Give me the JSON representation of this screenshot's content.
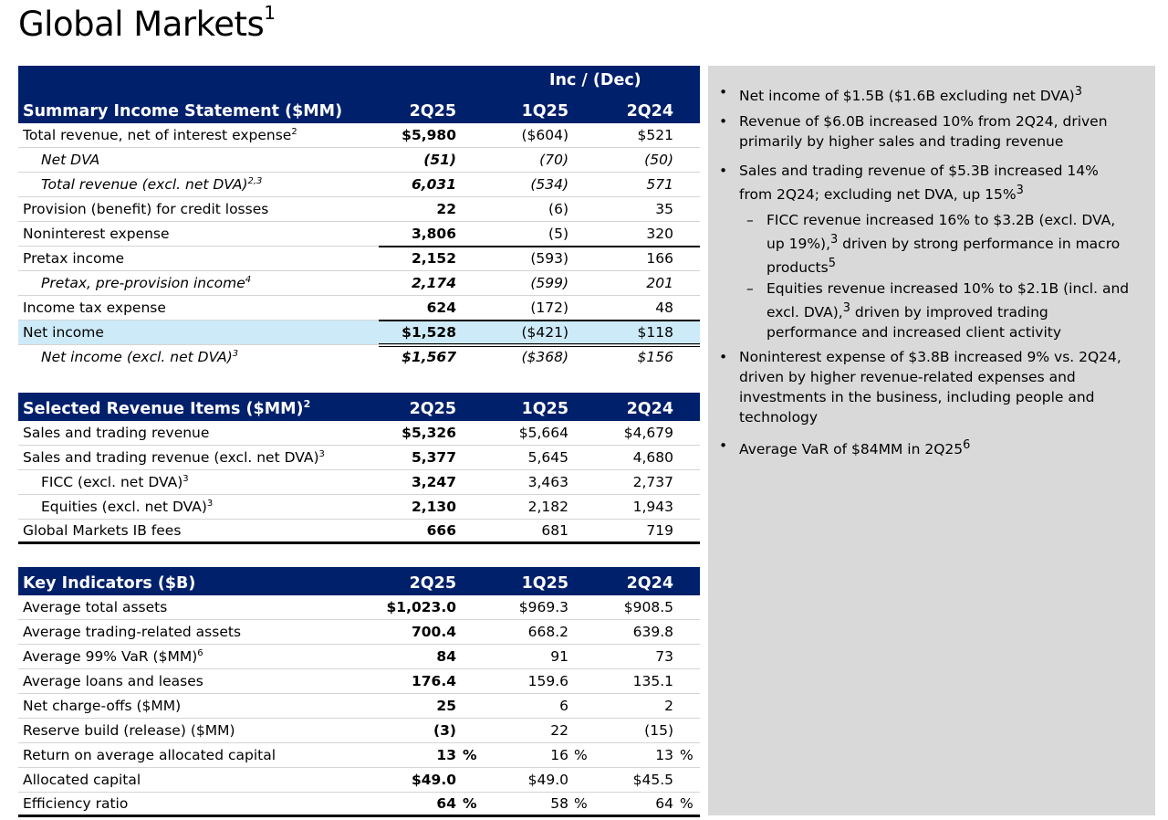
{
  "title": "Global Markets",
  "title_sup": "1",
  "summary": {
    "inc_dec": "Inc / (Dec)",
    "header": "Summary Income Statement ($MM)",
    "cols": [
      "2Q25",
      "1Q25",
      "2Q24"
    ],
    "rows": [
      {
        "label": "Total revenue, net of interest expense",
        "sup": "2",
        "v": [
          "$5,980",
          "($604)",
          "$521"
        ]
      },
      {
        "label": "Net DVA",
        "v": [
          "(51)",
          "(70)",
          "(50)"
        ]
      },
      {
        "label": "Total revenue (excl. net DVA)",
        "sup": "2,3",
        "v": [
          "6,031",
          "(534)",
          "571"
        ]
      },
      {
        "label": "Provision (benefit) for credit losses",
        "v": [
          "22",
          "(6)",
          "35"
        ]
      },
      {
        "label": "Noninterest expense",
        "v": [
          "3,806",
          "(5)",
          "320"
        ]
      },
      {
        "label": "Pretax income",
        "v": [
          "2,152",
          "(593)",
          "166"
        ]
      },
      {
        "label": "Pretax, pre-provision income",
        "sup": "4",
        "v": [
          "2,174",
          "(599)",
          "201"
        ]
      },
      {
        "label": "Income tax expense",
        "v": [
          "624",
          "(172)",
          "48"
        ]
      },
      {
        "label": "Net income",
        "v": [
          "$1,528",
          "($421)",
          "$118"
        ]
      },
      {
        "label": "Net income (excl. net DVA)",
        "sup": "3",
        "v": [
          "$1,567",
          "($368)",
          "$156"
        ]
      }
    ]
  },
  "revenue": {
    "header": "Selected Revenue Items ($MM)",
    "header_sup": "2",
    "cols": [
      "2Q25",
      "1Q25",
      "2Q24"
    ],
    "rows": [
      {
        "label": "Sales and trading revenue",
        "v": [
          "$5,326",
          "$5,664",
          "$4,679"
        ]
      },
      {
        "label": "Sales and trading revenue (excl. net DVA)",
        "sup": "3",
        "v": [
          "5,377",
          "5,645",
          "4,680"
        ]
      },
      {
        "label": "FICC (excl. net DVA)",
        "sup": "3",
        "v": [
          "3,247",
          "3,463",
          "2,737"
        ]
      },
      {
        "label": "Equities (excl. net DVA)",
        "sup": "3",
        "v": [
          "2,130",
          "2,182",
          "1,943"
        ]
      },
      {
        "label": "Global Markets IB fees",
        "v": [
          "666",
          "681",
          "719"
        ]
      }
    ]
  },
  "indicators": {
    "header": "Key Indicators ($B)",
    "cols": [
      "2Q25",
      "1Q25",
      "2Q24"
    ],
    "rows": [
      {
        "label": "Average total assets",
        "v": [
          "$1,023.0",
          "$969.3",
          "$908.5"
        ]
      },
      {
        "label": "Average trading-related assets",
        "v": [
          "700.4",
          "668.2",
          "639.8"
        ]
      },
      {
        "label": "Average 99% VaR ($MM)",
        "sup": "6",
        "v": [
          "84",
          "91",
          "73"
        ]
      },
      {
        "label": "Average loans and leases",
        "v": [
          "176.4",
          "159.6",
          "135.1"
        ]
      },
      {
        "label": "Net charge-offs ($MM)",
        "v": [
          "25",
          "6",
          "2"
        ]
      },
      {
        "label": "Reserve build (release) ($MM)",
        "v": [
          "(3)",
          "22",
          "(15)"
        ]
      },
      {
        "label": "Return on average allocated capital",
        "v": [
          "13",
          "16",
          "13"
        ],
        "suffix": "%"
      },
      {
        "label": "Allocated capital",
        "v": [
          "$49.0",
          "$49.0",
          "$45.5"
        ]
      },
      {
        "label": "Efficiency ratio",
        "v": [
          "64",
          "58",
          "64"
        ],
        "suffix": "%"
      }
    ]
  },
  "notes": [
    {
      "text": "Net income of $1.5B ($1.6B excluding net DVA)",
      "sup": "3"
    },
    {
      "text": "Revenue of $6.0B increased 10% from 2Q24, driven primarily by higher sales and trading revenue"
    },
    {
      "text": "Sales and trading revenue of $5.3B increased 14% from 2Q24; excluding net DVA, up 15%",
      "sup": "3"
    },
    {
      "text_a": "FICC revenue increased 16% to $3.2B (excl. DVA, up 19%),",
      "sup": "3",
      "text_b": " driven by strong performance in macro products",
      "sup2": "5"
    },
    {
      "text_a": "Equities revenue increased 10% to $2.1B (incl. and excl. DVA),",
      "sup": "3",
      "text_b": " driven by improved trading performance and increased client activity"
    },
    {
      "text": "Noninterest expense of $3.8B increased 9% vs. 2Q24, driven by higher revenue-related expenses and investments in the business, including people and technology"
    },
    {
      "text": "Average VaR of $84MM in 2Q25",
      "sup": "6"
    }
  ]
}
